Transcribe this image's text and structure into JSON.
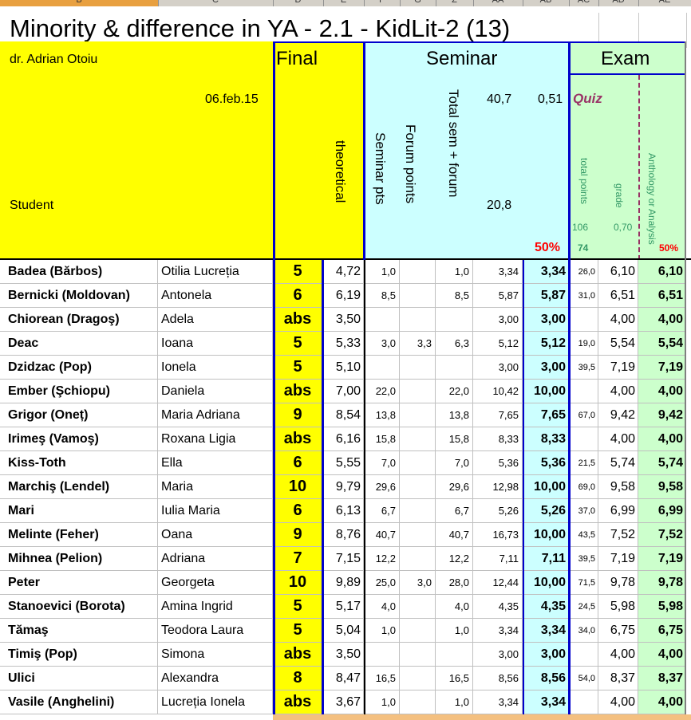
{
  "column_headers": [
    "B",
    "C",
    "D",
    "E",
    "F",
    "G",
    "Z",
    "AA",
    "AB",
    "AC",
    "AD",
    "AE"
  ],
  "title": "Minority & difference in YA - 2.1 - KidLit-2 (13)",
  "header": {
    "teacher": "dr. Adrian Otoiu",
    "date": "06.feb.15",
    "student_label": "Student",
    "final_label": "Final",
    "theoretical_label": "theoretical",
    "seminar_label": "Seminar",
    "seminar_pts_label": "Seminar pts",
    "forum_points_label": "Forum points",
    "total_sem_label": "Total sem + forum",
    "aa_top": "40,7",
    "aa_bottom": "20,8",
    "ab_top": "0,51",
    "ab_percent": "50%",
    "exam_label": "Exam",
    "quiz_label": "Quiz",
    "total_points_label": "total points",
    "total_points_value": "106",
    "quiz_count": "74",
    "grade_label": "grade",
    "grade_value": "0,70",
    "anthology_label": "Anthology or Analysis",
    "ae_percent": "50%"
  },
  "students": [
    {
      "surname": "Badea (Bărbos)",
      "first": "Otilia Lucreția",
      "final": "5",
      "theoretical": "4,72",
      "seminar_pts": "1,0",
      "forum": "",
      "total_sem": "1,0",
      "aa": "3,34",
      "ab": "3,34",
      "quiz_points": "26,0",
      "quiz_grade": "6,10",
      "exam": "6,10"
    },
    {
      "surname": "Bernicki (Moldovan)",
      "first": "Antonela",
      "final": "6",
      "theoretical": "6,19",
      "seminar_pts": "8,5",
      "forum": "",
      "total_sem": "8,5",
      "aa": "5,87",
      "ab": "5,87",
      "quiz_points": "31,0",
      "quiz_grade": "6,51",
      "exam": "6,51"
    },
    {
      "surname": "Chiorean (Dragoş)",
      "first": "Adela",
      "final": "abs",
      "theoretical": "3,50",
      "seminar_pts": "",
      "forum": "",
      "total_sem": "",
      "aa": "3,00",
      "ab": "3,00",
      "quiz_points": "",
      "quiz_grade": "4,00",
      "exam": "4,00"
    },
    {
      "surname": "Deac",
      "first": "Ioana",
      "final": "5",
      "theoretical": "5,33",
      "seminar_pts": "3,0",
      "forum": "3,3",
      "total_sem": "6,3",
      "aa": "5,12",
      "ab": "5,12",
      "quiz_points": "19,0",
      "quiz_grade": "5,54",
      "exam": "5,54"
    },
    {
      "surname": "Dzidzac (Pop)",
      "first": "Ionela",
      "final": "5",
      "theoretical": "5,10",
      "seminar_pts": "",
      "forum": "",
      "total_sem": "",
      "aa": "3,00",
      "ab": "3,00",
      "quiz_points": "39,5",
      "quiz_grade": "7,19",
      "exam": "7,19"
    },
    {
      "surname": "Ember (Şchiopu)",
      "first": "Daniela",
      "final": "abs",
      "theoretical": "7,00",
      "seminar_pts": "22,0",
      "forum": "",
      "total_sem": "22,0",
      "aa": "10,42",
      "ab": "10,00",
      "quiz_points": "",
      "quiz_grade": "4,00",
      "exam": "4,00"
    },
    {
      "surname": "Grigor (Oneț)",
      "first": "Maria Adriana",
      "final": "9",
      "theoretical": "8,54",
      "seminar_pts": "13,8",
      "forum": "",
      "total_sem": "13,8",
      "aa": "7,65",
      "ab": "7,65",
      "quiz_points": "67,0",
      "quiz_grade": "9,42",
      "exam": "9,42"
    },
    {
      "surname": "Irimeş (Vamoş)",
      "first": "Roxana Ligia",
      "final": "abs",
      "theoretical": "6,16",
      "seminar_pts": "15,8",
      "forum": "",
      "total_sem": "15,8",
      "aa": "8,33",
      "ab": "8,33",
      "quiz_points": "",
      "quiz_grade": "4,00",
      "exam": "4,00"
    },
    {
      "surname": "Kiss-Toth",
      "first": "Ella",
      "final": "6",
      "theoretical": "5,55",
      "seminar_pts": "7,0",
      "forum": "",
      "total_sem": "7,0",
      "aa": "5,36",
      "ab": "5,36",
      "quiz_points": "21,5",
      "quiz_grade": "5,74",
      "exam": "5,74"
    },
    {
      "surname": "Marchiş (Lendel)",
      "first": "Maria",
      "final": "10",
      "theoretical": "9,79",
      "seminar_pts": "29,6",
      "forum": "",
      "total_sem": "29,6",
      "aa": "12,98",
      "ab": "10,00",
      "quiz_points": "69,0",
      "quiz_grade": "9,58",
      "exam": "9,58"
    },
    {
      "surname": "Mari",
      "first": "Iulia Maria",
      "final": "6",
      "theoretical": "6,13",
      "seminar_pts": "6,7",
      "forum": "",
      "total_sem": "6,7",
      "aa": "5,26",
      "ab": "5,26",
      "quiz_points": "37,0",
      "quiz_grade": "6,99",
      "exam": "6,99"
    },
    {
      "surname": "Melinte (Feher)",
      "first": "Oana",
      "final": "9",
      "theoretical": "8,76",
      "seminar_pts": "40,7",
      "forum": "",
      "total_sem": "40,7",
      "aa": "16,73",
      "ab": "10,00",
      "quiz_points": "43,5",
      "quiz_grade": "7,52",
      "exam": "7,52"
    },
    {
      "surname": "Mihnea (Pelion)",
      "first": "Adriana",
      "final": "7",
      "theoretical": "7,15",
      "seminar_pts": "12,2",
      "forum": "",
      "total_sem": "12,2",
      "aa": "7,11",
      "ab": "7,11",
      "quiz_points": "39,5",
      "quiz_grade": "7,19",
      "exam": "7,19"
    },
    {
      "surname": "Peter",
      "first": "Georgeta",
      "final": "10",
      "theoretical": "9,89",
      "seminar_pts": "25,0",
      "forum": "3,0",
      "total_sem": "28,0",
      "aa": "12,44",
      "ab": "10,00",
      "quiz_points": "71,5",
      "quiz_grade": "9,78",
      "exam": "9,78"
    },
    {
      "surname": "Stanoevici (Borota)",
      "first": "Amina Ingrid",
      "final": "5",
      "theoretical": "5,17",
      "seminar_pts": "4,0",
      "forum": "",
      "total_sem": "4,0",
      "aa": "4,35",
      "ab": "4,35",
      "quiz_points": "24,5",
      "quiz_grade": "5,98",
      "exam": "5,98"
    },
    {
      "surname": "Tămaş",
      "first": "Teodora Laura",
      "final": "5",
      "theoretical": "5,04",
      "seminar_pts": "1,0",
      "forum": "",
      "total_sem": "1,0",
      "aa": "3,34",
      "ab": "3,34",
      "quiz_points": "34,0",
      "quiz_grade": "6,75",
      "exam": "6,75"
    },
    {
      "surname": "Timiş (Pop)",
      "first": "Simona",
      "final": "abs",
      "theoretical": "3,50",
      "seminar_pts": "",
      "forum": "",
      "total_sem": "",
      "aa": "3,00",
      "ab": "3,00",
      "quiz_points": "",
      "quiz_grade": "4,00",
      "exam": "4,00"
    },
    {
      "surname": "Ulici",
      "first": "Alexandra",
      "final": "8",
      "theoretical": "8,47",
      "seminar_pts": "16,5",
      "forum": "",
      "total_sem": "16,5",
      "aa": "8,56",
      "ab": "8,56",
      "quiz_points": "54,0",
      "quiz_grade": "8,37",
      "exam": "8,37"
    },
    {
      "surname": "Vasile (Anghelini)",
      "first": "Lucreția Ionela",
      "final": "abs",
      "theoretical": "3,67",
      "seminar_pts": "1,0",
      "forum": "",
      "total_sem": "1,0",
      "aa": "3,34",
      "ab": "3,34",
      "quiz_points": "",
      "quiz_grade": "4,00",
      "exam": "4,00"
    }
  ],
  "colors": {
    "yellow": "#ffff00",
    "cyan": "#ccffff",
    "green": "#ccffcc",
    "border_blue": "#0000cc",
    "quiz": "#993366",
    "percent_red": "#ff0000",
    "green_text": "#339966"
  }
}
